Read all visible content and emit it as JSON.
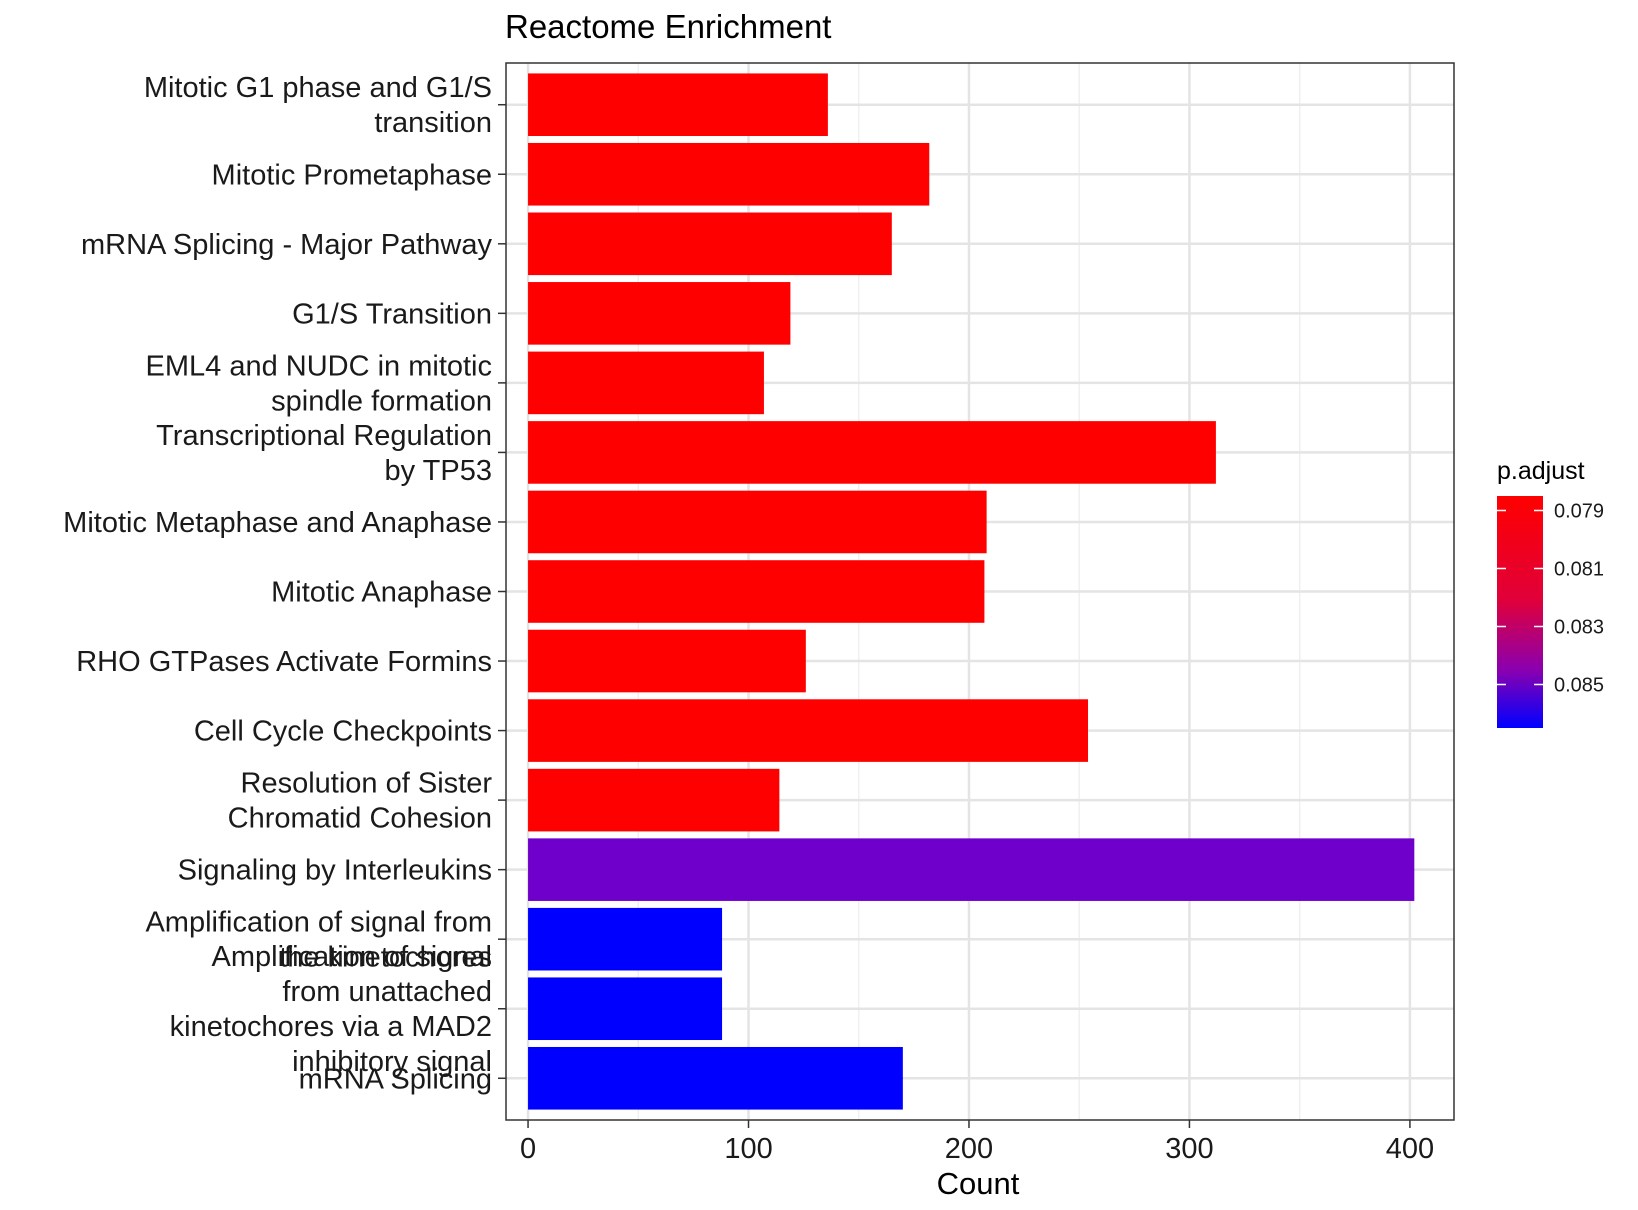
{
  "chart_data": {
    "type": "bar",
    "orientation": "horizontal",
    "title": "Reactome Enrichment",
    "xlabel": "Count",
    "ylabel": "",
    "xlim": [
      -10,
      420
    ],
    "xticks": [
      0,
      100,
      200,
      300,
      400
    ],
    "grid": true,
    "legend": {
      "title": "p.adjust",
      "position": "right",
      "type": "color-gradient",
      "range": [
        0.0785,
        0.0865
      ],
      "ticks": [
        0.079,
        0.081,
        0.083,
        0.085
      ],
      "tick_labels": [
        "0.079",
        "0.081",
        "0.083",
        "0.085"
      ],
      "color_low": "#ff0000",
      "color_high": "#0000ff"
    },
    "categories": [
      [
        "Mitotic G1 phase and G1/S",
        "transition"
      ],
      [
        "Mitotic Prometaphase"
      ],
      [
        "mRNA Splicing - Major Pathway"
      ],
      [
        "G1/S Transition"
      ],
      [
        "EML4 and NUDC in mitotic",
        "spindle formation"
      ],
      [
        "Transcriptional Regulation",
        "by TP53"
      ],
      [
        "Mitotic Metaphase and Anaphase"
      ],
      [
        "Mitotic Anaphase"
      ],
      [
        "RHO GTPases Activate Formins"
      ],
      [
        "Cell Cycle Checkpoints"
      ],
      [
        "Resolution of Sister",
        "Chromatid Cohesion"
      ],
      [
        "Signaling by Interleukins"
      ],
      [
        "Amplification of signal from",
        "the kinetochores"
      ],
      [
        "Amplification of signal",
        "from unattached",
        "kinetochores via a MAD2",
        "inhibitory signal"
      ],
      [
        "mRNA Splicing"
      ]
    ],
    "values": [
      136,
      182,
      165,
      119,
      107,
      312,
      208,
      207,
      126,
      254,
      114,
      402,
      88,
      88,
      170
    ],
    "p_adjust": [
      0.0788,
      0.0788,
      0.0788,
      0.0788,
      0.0788,
      0.0788,
      0.0788,
      0.0788,
      0.0788,
      0.0788,
      0.0788,
      0.0848,
      0.0862,
      0.0862,
      0.0862
    ],
    "bar_colors": [
      "#ff0000",
      "#ff0000",
      "#ff0000",
      "#ff0000",
      "#ff0000",
      "#ff0000",
      "#ff0000",
      "#ff0000",
      "#ff0000",
      "#ff0000",
      "#ff0000",
      "#6f00cc",
      "#0000ff",
      "#0000ff",
      "#0000ff"
    ]
  }
}
